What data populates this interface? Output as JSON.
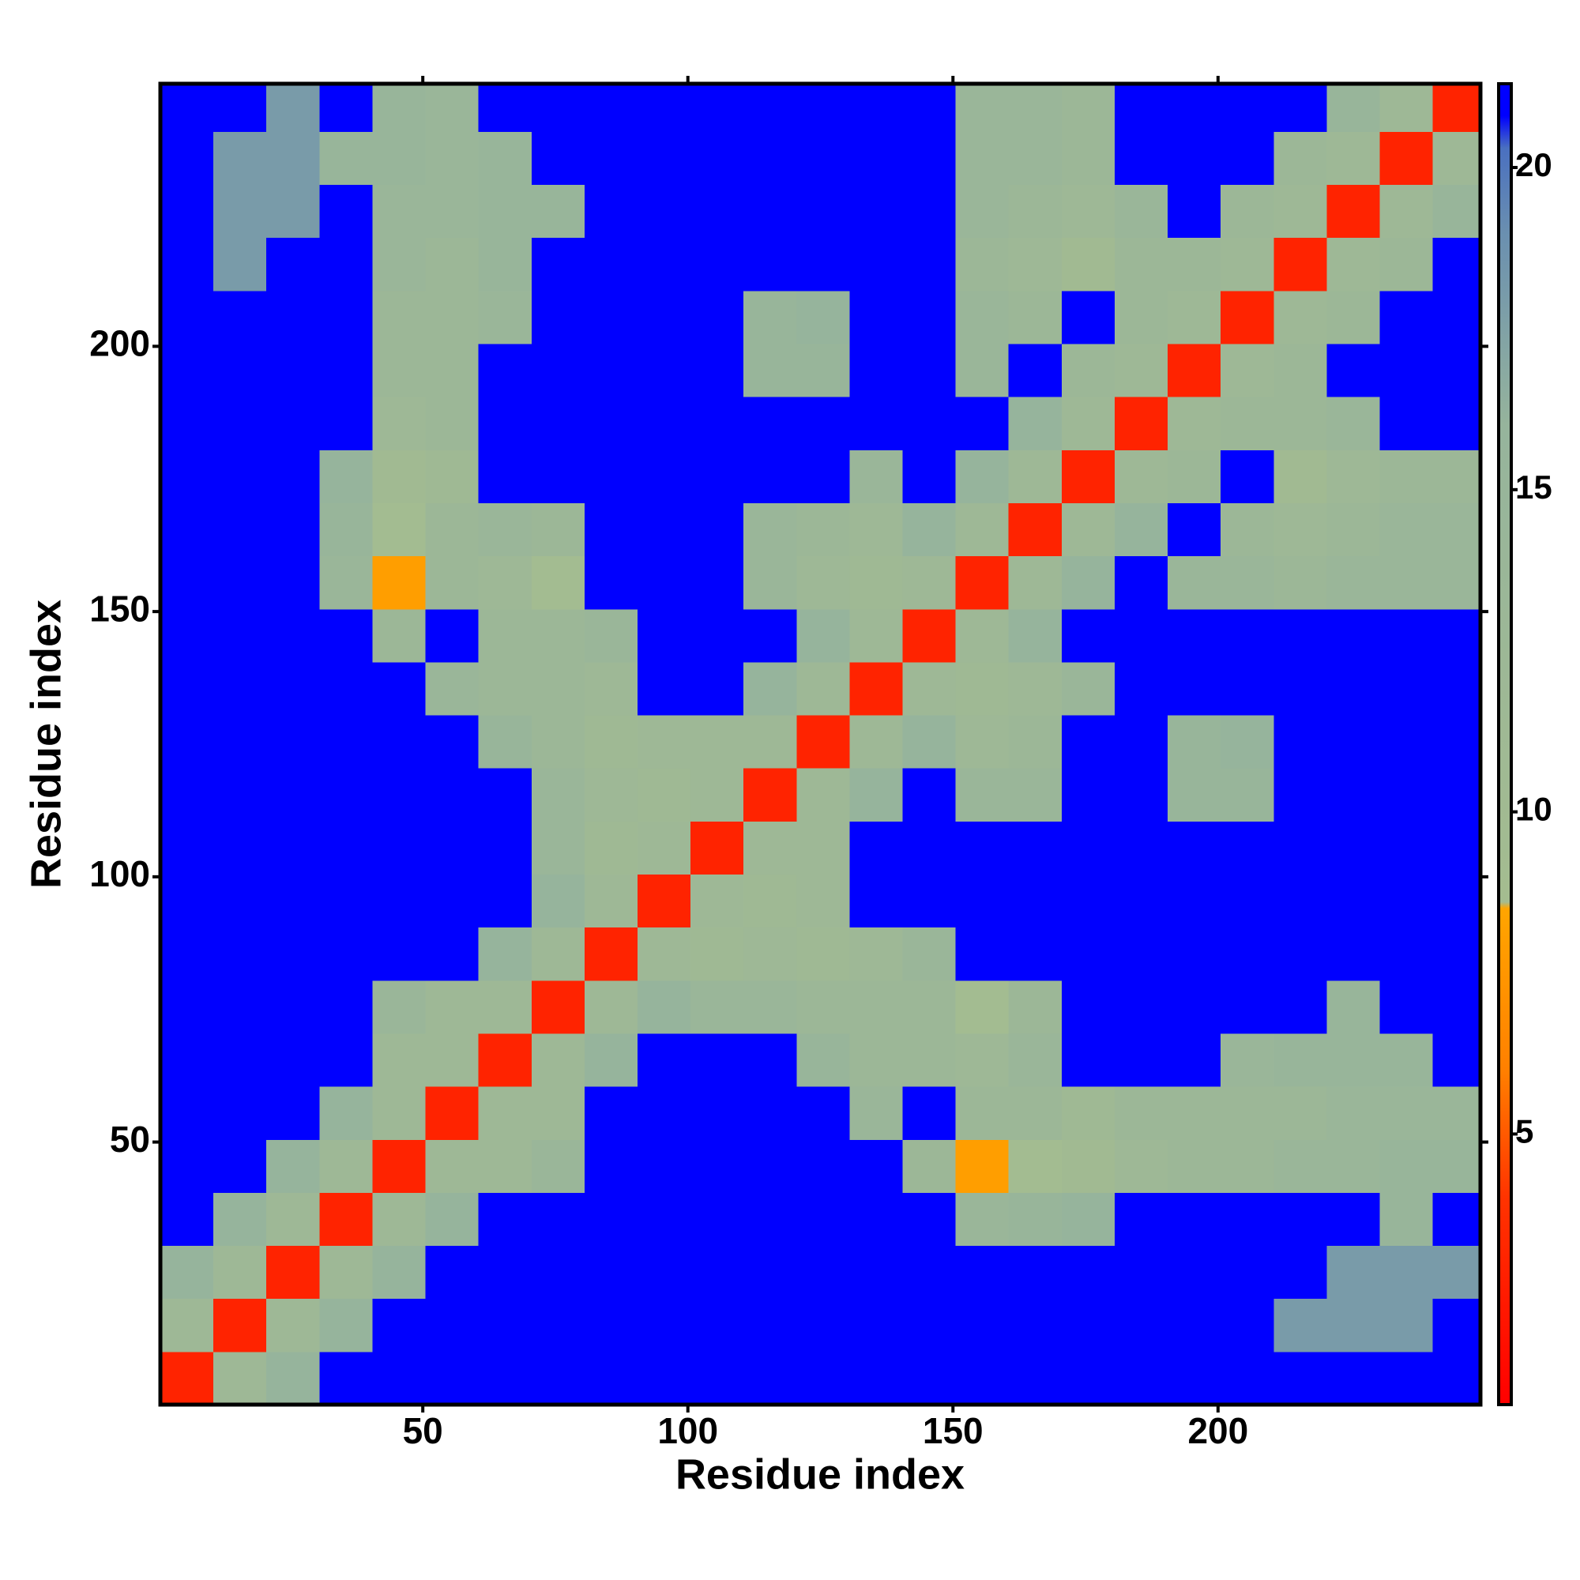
{
  "chart_data": {
    "type": "heatmap",
    "x_label": "Residue index",
    "y_label": "Residue index",
    "xlim": [
      0.5,
      249.5
    ],
    "ylim": [
      0.5,
      249.5
    ],
    "xticks": [
      50,
      100,
      150,
      200
    ],
    "yticks": [
      50,
      100,
      150,
      200
    ],
    "zlim": [
      0.8,
      21.3
    ],
    "zticks": [
      5,
      10,
      15,
      20
    ],
    "colorscale": [
      {
        "value": 0.8,
        "color": "#ff0000"
      },
      {
        "value": 4,
        "color": "#ff3300"
      },
      {
        "value": 6,
        "color": "#ff8000"
      },
      {
        "value": 8.5,
        "color": "#ffa500"
      },
      {
        "value": 8.6,
        "color": "#a4bc90"
      },
      {
        "value": 16,
        "color": "#96b49c"
      },
      {
        "value": 19,
        "color": "#6a8fb0"
      },
      {
        "value": 20.3,
        "color": "#4a70c0"
      },
      {
        "value": 20.8,
        "color": "#0000ff"
      },
      {
        "value": 21.3,
        "color": "#0000ff"
      }
    ],
    "x_bins": [
      0.5,
      10.5,
      20.5,
      30.5,
      40.5,
      50.5,
      60.5,
      70.5,
      80.5,
      90.5,
      100.5,
      110.5,
      120.5,
      130.5,
      140.5,
      150.5,
      160.5,
      170.5,
      180.5,
      190.5,
      200.5,
      210.5,
      220.5,
      230.5,
      240.5,
      249.5
    ],
    "y_bins": [
      0.5,
      10.5,
      20.5,
      30.5,
      40.5,
      50.5,
      60.5,
      70.5,
      80.5,
      90.5,
      100.5,
      110.5,
      120.5,
      130.5,
      140.5,
      150.5,
      160.5,
      170.5,
      180.5,
      190.5,
      200.5,
      210.5,
      220.5,
      230.5,
      240.5,
      249.5
    ],
    "z": [
      [
        3,
        12,
        16,
        21,
        21,
        21,
        21,
        21,
        21,
        21,
        21,
        21,
        21,
        21,
        21,
        21,
        21,
        21,
        21,
        21,
        21,
        21,
        21,
        21,
        21
      ],
      [
        12,
        3,
        12,
        16,
        21,
        21,
        21,
        21,
        21,
        21,
        21,
        21,
        21,
        21,
        21,
        21,
        21,
        21,
        21,
        21,
        21,
        18,
        18,
        18,
        21
      ],
      [
        16,
        12,
        3,
        12,
        16,
        21,
        21,
        21,
        21,
        21,
        21,
        21,
        21,
        21,
        21,
        21,
        21,
        21,
        21,
        21,
        21,
        21,
        18,
        18,
        18
      ],
      [
        21,
        16,
        12,
        3,
        12,
        16,
        21,
        21,
        21,
        21,
        21,
        21,
        21,
        21,
        21,
        14,
        15,
        16,
        21,
        21,
        21,
        21,
        21,
        15,
        21
      ],
      [
        21,
        21,
        16,
        12,
        3,
        12,
        12,
        14,
        21,
        21,
        21,
        21,
        21,
        21,
        13,
        8,
        9,
        10,
        12,
        13,
        13,
        14,
        14,
        15,
        15
      ],
      [
        21,
        21,
        21,
        16,
        12,
        3,
        12,
        12,
        21,
        21,
        21,
        21,
        21,
        14,
        21,
        13,
        13,
        11,
        13,
        13,
        13,
        13,
        14,
        14,
        14
      ],
      [
        21,
        21,
        21,
        21,
        12,
        12,
        3,
        12,
        16,
        21,
        21,
        21,
        15,
        13,
        13,
        12,
        14,
        21,
        21,
        21,
        14,
        15,
        15,
        15,
        21
      ],
      [
        21,
        21,
        21,
        21,
        14,
        12,
        12,
        3,
        12,
        16,
        14,
        14,
        13,
        13,
        13,
        9,
        13,
        21,
        21,
        21,
        21,
        21,
        15,
        21,
        21
      ],
      [
        21,
        21,
        21,
        21,
        21,
        21,
        16,
        12,
        3,
        12,
        11,
        12,
        11,
        12,
        14,
        21,
        21,
        21,
        21,
        21,
        21,
        21,
        21,
        21,
        21
      ],
      [
        21,
        21,
        21,
        21,
        21,
        21,
        21,
        16,
        12,
        3,
        12,
        11,
        12,
        21,
        21,
        21,
        21,
        21,
        21,
        21,
        21,
        21,
        21,
        21,
        21
      ],
      [
        21,
        21,
        21,
        21,
        21,
        21,
        21,
        14,
        11,
        12,
        3,
        12,
        12,
        21,
        21,
        21,
        21,
        21,
        21,
        21,
        21,
        21,
        21,
        21,
        21
      ],
      [
        21,
        21,
        21,
        21,
        21,
        21,
        21,
        14,
        12,
        11,
        12,
        3,
        12,
        16,
        21,
        14,
        14,
        21,
        21,
        15,
        15,
        21,
        21,
        21,
        21
      ],
      [
        21,
        21,
        21,
        21,
        21,
        21,
        15,
        13,
        11,
        12,
        12,
        12,
        3,
        12,
        16,
        12,
        13,
        21,
        21,
        15,
        16,
        21,
        21,
        21,
        21
      ],
      [
        21,
        21,
        21,
        21,
        21,
        14,
        13,
        13,
        12,
        21,
        21,
        16,
        12,
        3,
        12,
        11,
        12,
        14,
        21,
        21,
        21,
        21,
        21,
        21,
        21
      ],
      [
        21,
        21,
        21,
        21,
        13,
        21,
        13,
        13,
        14,
        21,
        21,
        21,
        16,
        12,
        3,
        12,
        16,
        21,
        21,
        21,
        21,
        21,
        21,
        21,
        21
      ],
      [
        21,
        21,
        21,
        14,
        8,
        13,
        12,
        9,
        21,
        21,
        21,
        14,
        12,
        11,
        12,
        3,
        12,
        16,
        21,
        14,
        14,
        13,
        14,
        14,
        14
      ],
      [
        21,
        21,
        21,
        15,
        9,
        13,
        14,
        13,
        21,
        21,
        21,
        14,
        13,
        12,
        16,
        12,
        3,
        12,
        16,
        21,
        13,
        12,
        13,
        14,
        14
      ],
      [
        21,
        21,
        21,
        16,
        10,
        11,
        21,
        21,
        21,
        21,
        21,
        21,
        21,
        14,
        21,
        16,
        12,
        3,
        12,
        13,
        21,
        10,
        12,
        13,
        13
      ],
      [
        21,
        21,
        21,
        21,
        12,
        13,
        21,
        21,
        21,
        21,
        21,
        21,
        21,
        21,
        21,
        21,
        16,
        12,
        3,
        12,
        13,
        13,
        14,
        21,
        21
      ],
      [
        21,
        21,
        21,
        21,
        13,
        13,
        21,
        21,
        21,
        21,
        21,
        15,
        15,
        21,
        21,
        14,
        21,
        13,
        12,
        3,
        12,
        13,
        21,
        21,
        21
      ],
      [
        21,
        21,
        21,
        21,
        13,
        13,
        14,
        21,
        21,
        21,
        21,
        15,
        16,
        21,
        21,
        14,
        13,
        21,
        13,
        12,
        3,
        12,
        13,
        21,
        21
      ],
      [
        21,
        18,
        21,
        21,
        14,
        13,
        15,
        21,
        21,
        21,
        21,
        21,
        21,
        21,
        21,
        13,
        12,
        10,
        13,
        13,
        12,
        3,
        12,
        13,
        21
      ],
      [
        21,
        18,
        18,
        21,
        14,
        14,
        15,
        15,
        21,
        21,
        21,
        21,
        21,
        21,
        21,
        14,
        13,
        12,
        14,
        21,
        13,
        12,
        3,
        12,
        15
      ],
      [
        21,
        18,
        18,
        15,
        15,
        14,
        15,
        21,
        21,
        21,
        21,
        21,
        21,
        21,
        21,
        14,
        14,
        13,
        21,
        21,
        21,
        13,
        12,
        3,
        12
      ],
      [
        21,
        21,
        18,
        21,
        15,
        14,
        21,
        21,
        21,
        21,
        21,
        21,
        21,
        21,
        21,
        14,
        14,
        13,
        21,
        21,
        21,
        21,
        15,
        12,
        3
      ]
    ]
  }
}
